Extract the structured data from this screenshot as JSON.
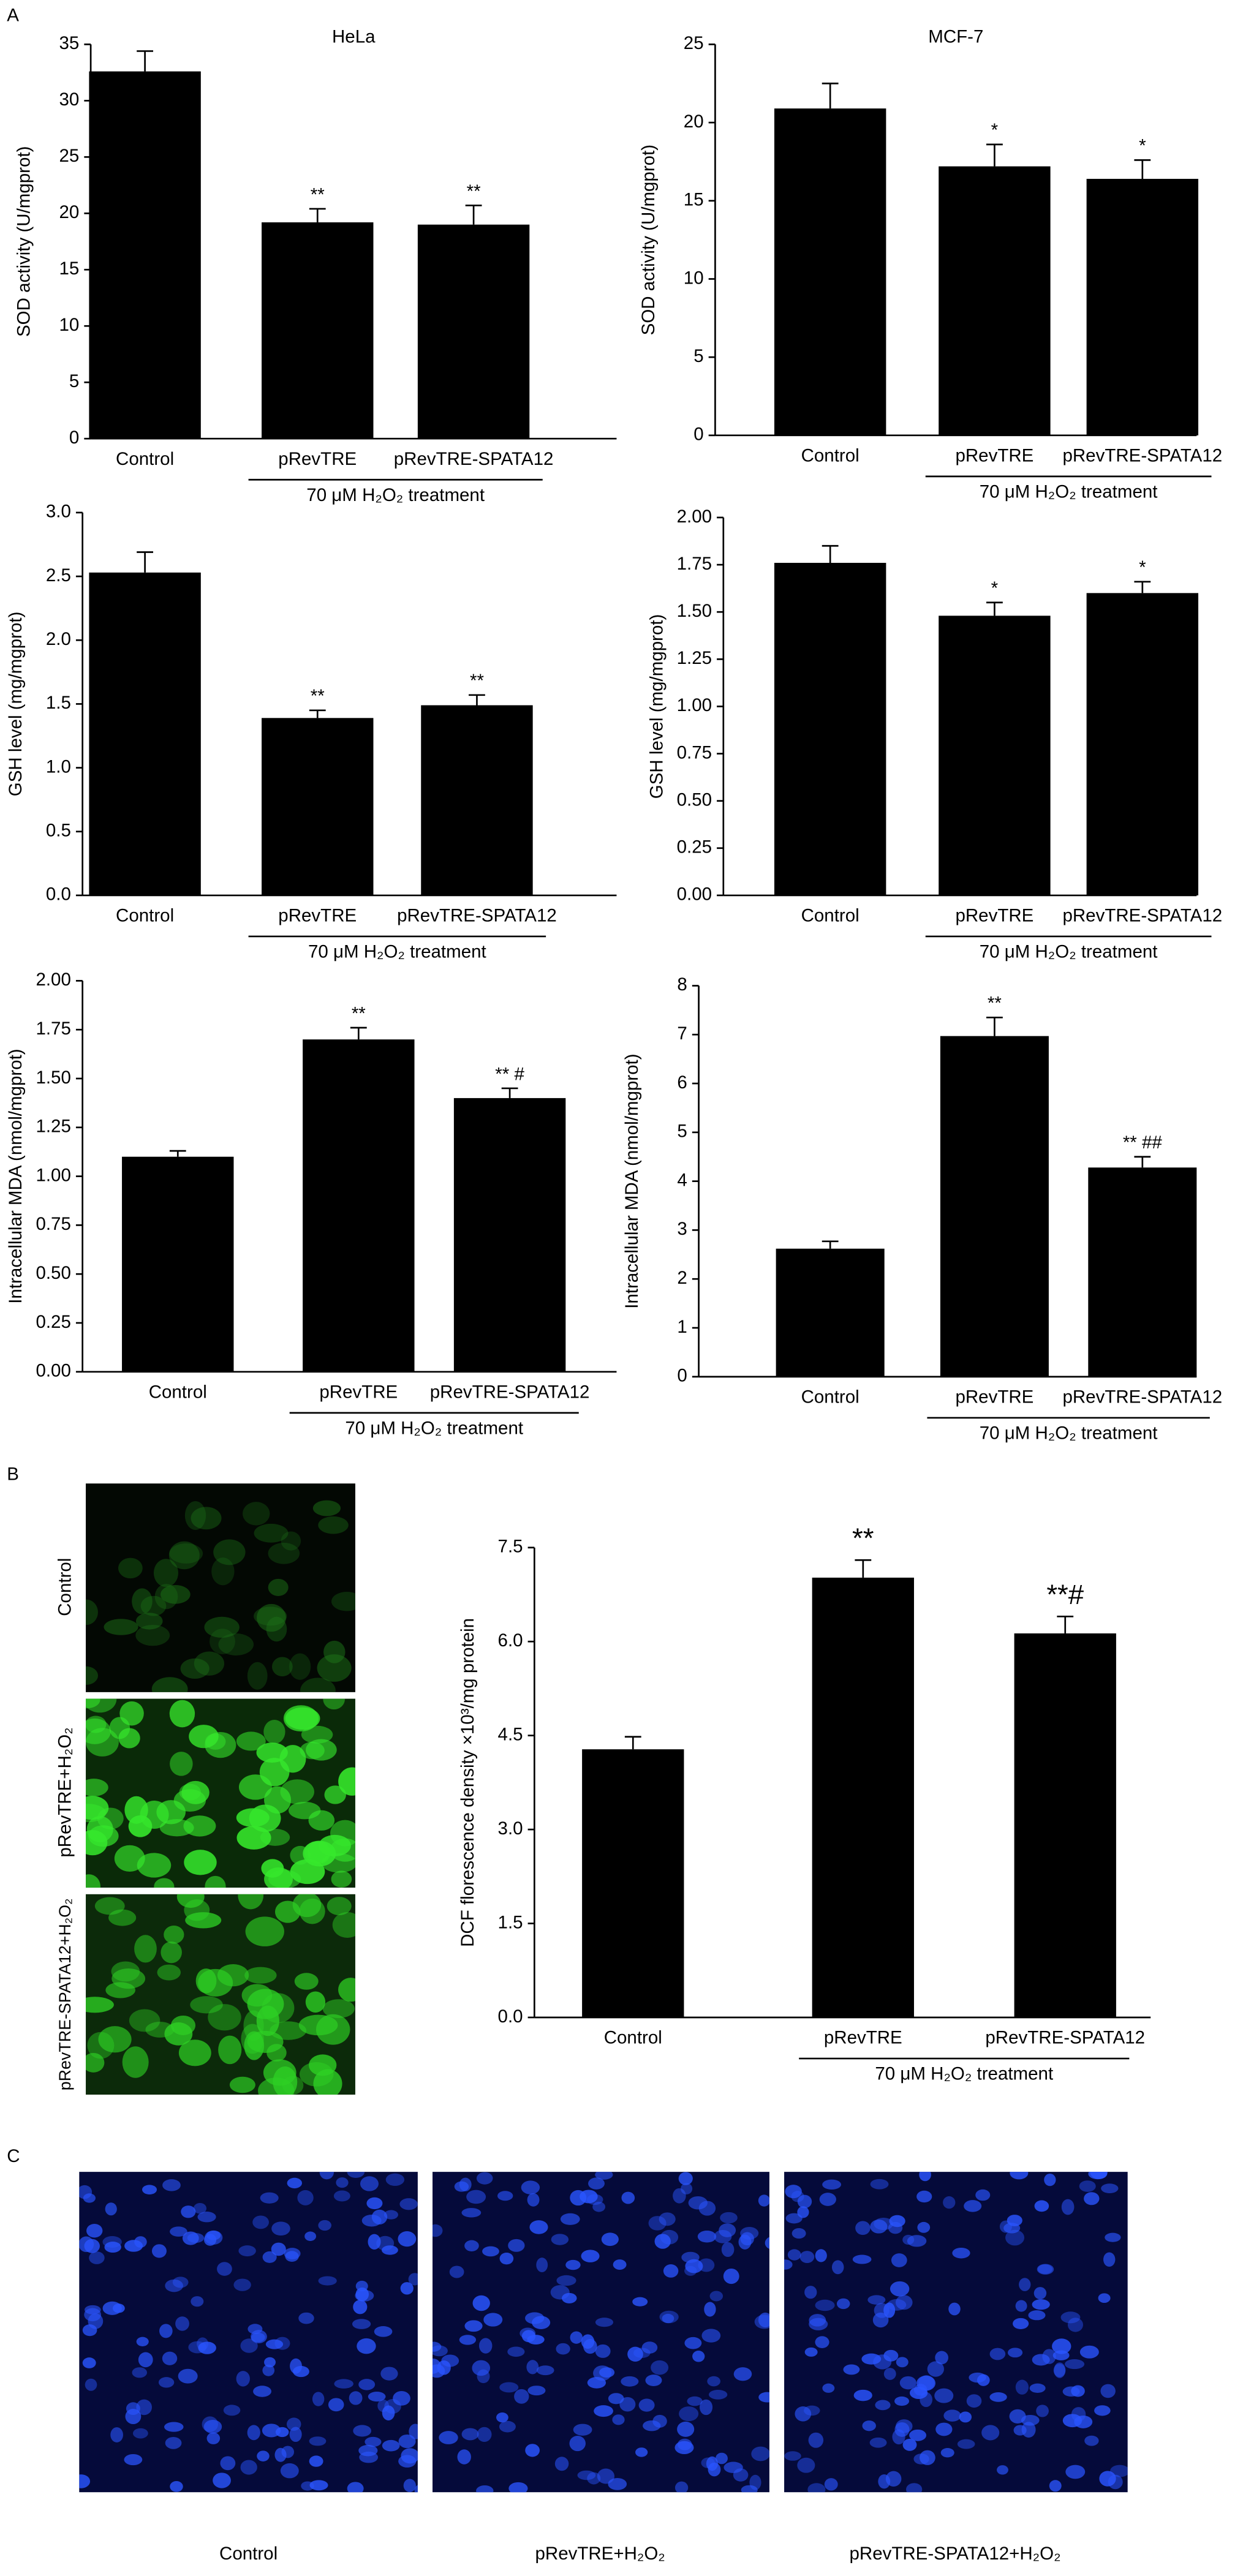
{
  "panel_labels": [
    "A",
    "B",
    "C"
  ],
  "image_labels": {
    "B": [
      "Control",
      "pRevTRE+H₂O₂",
      "pRevTRE-SPATA12+H₂O₂"
    ],
    "C": [
      "Control",
      "pRevTRE+H₂O₂",
      "pRevTRE-SPATA12+H₂O₂"
    ]
  },
  "chart_data": [
    {
      "type": "bar",
      "title": "HeLa",
      "y_label": "SOD activity (U/mgprot)",
      "categories": [
        "Control",
        "pRevTRE",
        "pRevTRE-SPATA12"
      ],
      "group_label": "70 μM H₂O₂ treatment",
      "values": [
        32.6,
        19.2,
        19.0
      ],
      "errors": [
        1.8,
        1.2,
        1.7
      ],
      "annotations": [
        null,
        "**",
        "**"
      ],
      "color": "#000000",
      "ylim": [
        0,
        35
      ],
      "yticks": [
        0,
        5,
        10,
        15,
        20,
        25,
        30,
        35
      ]
    },
    {
      "type": "bar",
      "title": "MCF-7",
      "y_label": "SOD activity (U/mgprot)",
      "categories": [
        "Control",
        "pRevTRE",
        "pRevTRE-SPATA12"
      ],
      "group_label": "70 μM H₂O₂ treatment",
      "values": [
        20.9,
        17.2,
        16.4
      ],
      "errors": [
        1.6,
        1.4,
        1.2
      ],
      "annotations": [
        null,
        "*",
        "*"
      ],
      "color": "#000000",
      "ylim": [
        0,
        25
      ],
      "yticks": [
        0,
        5,
        10,
        15,
        20,
        25
      ]
    },
    {
      "type": "bar",
      "y_label": "GSH level (mg/mgprot)",
      "categories": [
        "Control",
        "pRevTRE",
        "pRevTRE-SPATA12"
      ],
      "group_label": "70 μM H₂O₂ treatment",
      "values": [
        2.53,
        1.39,
        1.49
      ],
      "errors": [
        0.16,
        0.06,
        0.08
      ],
      "annotations": [
        null,
        "**",
        "**"
      ],
      "color": "#000000",
      "ylim": [
        0,
        3
      ],
      "yticks": [
        {
          "value": 0,
          "label": "0.0"
        },
        0.5,
        {
          "value": 1,
          "label": "1.0"
        },
        1.5,
        {
          "value": 2,
          "label": "2.0"
        },
        2.5,
        {
          "value": 3,
          "label": "3.0"
        }
      ]
    },
    {
      "type": "bar",
      "y_label": "GSH level (mg/mgprot)",
      "categories": [
        "Control",
        "pRevTRE",
        "pRevTRE-SPATA12"
      ],
      "group_label": "70 μM H₂O₂ treatment",
      "values": [
        1.76,
        1.48,
        1.6
      ],
      "errors": [
        0.09,
        0.07,
        0.06
      ],
      "annotations": [
        null,
        "*",
        "*"
      ],
      "color": "#000000",
      "ylim": [
        0,
        2
      ],
      "yticks": [
        {
          "value": 0,
          "label": "0.00"
        },
        0.25,
        {
          "value": 0.5,
          "label": "0.50"
        },
        0.75,
        {
          "value": 1,
          "label": "1.00"
        },
        1.25,
        {
          "value": 1.5,
          "label": "1.50"
        },
        1.75,
        {
          "value": 2,
          "label": "2.00"
        }
      ]
    },
    {
      "type": "bar",
      "y_label": "Intracellular MDA (nmol/mgprot)",
      "categories": [
        "Control",
        "pRevTRE",
        "pRevTRE-SPATA12"
      ],
      "group_label": "70 μM H₂O₂ treatment",
      "values": [
        1.1,
        1.7,
        1.4
      ],
      "errors": [
        0.03,
        0.06,
        0.05
      ],
      "annotations": [
        null,
        "**",
        "** #"
      ],
      "color": "#000000",
      "ylim": [
        0,
        2
      ],
      "yticks": [
        {
          "value": 0,
          "label": "0.00"
        },
        0.25,
        {
          "value": 0.5,
          "label": "0.50"
        },
        0.75,
        {
          "value": 1,
          "label": "1.00"
        },
        1.25,
        {
          "value": 1.5,
          "label": "1.50"
        },
        1.75,
        {
          "value": 2,
          "label": "2.00"
        }
      ]
    },
    {
      "type": "bar",
      "y_label": "Intracellular MDA (nmol/mgprot)",
      "categories": [
        "Control",
        "pRevTRE",
        "pRevTRE-SPATA12"
      ],
      "group_label": "70 μM H₂O₂ treatment",
      "values": [
        2.62,
        6.97,
        4.28
      ],
      "errors": [
        0.15,
        0.38,
        0.22
      ],
      "annotations": [
        null,
        "**",
        "** ##"
      ],
      "color": "#000000",
      "ylim": [
        0,
        8
      ],
      "yticks": [
        0,
        1,
        2,
        3,
        4,
        5,
        6,
        7,
        8
      ]
    },
    {
      "type": "bar",
      "y_label": "DCF florescence density ×10³/mg protein",
      "categories": [
        "Control",
        "pRevTRE",
        "pRevTRE-SPATA12"
      ],
      "group_label": "70 μM H₂O₂ treatment",
      "values": [
        4.28,
        7.02,
        6.13
      ],
      "errors": [
        0.2,
        0.28,
        0.27
      ],
      "annotations": [
        null,
        "**",
        "**#"
      ],
      "color": "#000000",
      "ylim": [
        0,
        7.5
      ],
      "yticks": [
        {
          "value": 0,
          "label": "0.0"
        },
        1.5,
        {
          "value": 3,
          "label": "3.0"
        },
        4.5,
        {
          "value": 6,
          "label": "6.0"
        },
        7.5
      ]
    }
  ]
}
